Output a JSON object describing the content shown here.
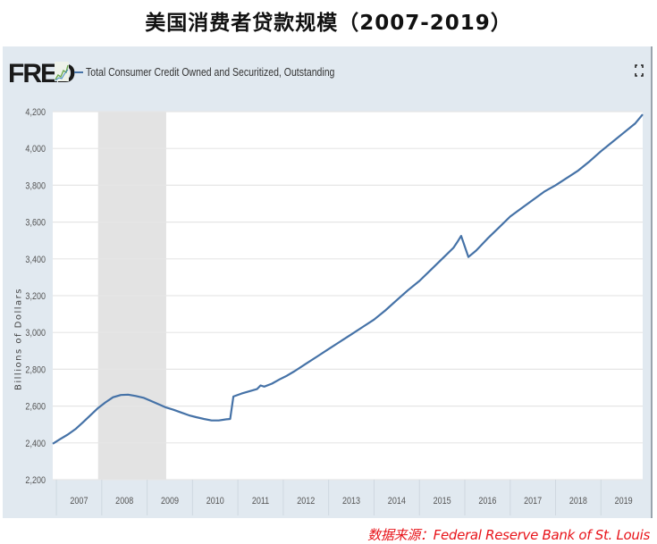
{
  "page": {
    "title": "美国消费者贷款规模（2007-2019）",
    "source": "数据来源：Federal Reserve Bank of St. Louis"
  },
  "fred": {
    "logo_text": "FRED",
    "legend_label": "Total Consumer Credit Owned and Securitized, Outstanding",
    "fullscreen_icon": "fullscreen-icon"
  },
  "colors": {
    "line": "#4572a7",
    "panel_bg": "#e1e9f0",
    "plot_bg": "#ffffff",
    "recession": "#e3e3e3",
    "gridline": "#e6e6e6",
    "source_text": "#e8141a"
  },
  "chart_data": {
    "type": "line",
    "title": "美国消费者贷款规模（2007-2019）",
    "subtitle": "Total Consumer Credit Owned and Securitized, Outstanding",
    "xlabel": "",
    "ylabel": "Billions of Dollars",
    "ylim": [
      2200,
      4200
    ],
    "yticks": [
      2200,
      2400,
      2600,
      2800,
      3000,
      3200,
      3400,
      3600,
      3800,
      4000,
      4200
    ],
    "ytick_labels": [
      "2,200",
      "2,400",
      "2,600",
      "2,800",
      "3,000",
      "3,200",
      "3,400",
      "3,600",
      "3,800",
      "4,000",
      "4,200"
    ],
    "xlim": [
      2006.92,
      2019.92
    ],
    "xticks": [
      2007.5,
      2008.5,
      2009.5,
      2010.5,
      2011.5,
      2012.5,
      2013.5,
      2014.5,
      2015.5,
      2016.5,
      2017.5,
      2018.5,
      2019.5
    ],
    "xtick_labels": [
      "2007",
      "2008",
      "2009",
      "2010",
      "2011",
      "2012",
      "2013",
      "2014",
      "2015",
      "2016",
      "2017",
      "2018",
      "2019"
    ],
    "grid": true,
    "legend_position": "top-left",
    "recession_shading": [
      {
        "start": 2007.92,
        "end": 2009.42
      }
    ],
    "series": [
      {
        "name": "Total Consumer Credit Owned and Securitized, Outstanding",
        "x": [
          2006.92,
          2007.08,
          2007.25,
          2007.42,
          2007.58,
          2007.75,
          2007.92,
          2008.08,
          2008.25,
          2008.42,
          2008.58,
          2008.75,
          2008.92,
          2009.08,
          2009.25,
          2009.42,
          2009.58,
          2009.75,
          2009.92,
          2010.08,
          2010.25,
          2010.42,
          2010.58,
          2010.75,
          2010.83,
          2010.9,
          2011.08,
          2011.25,
          2011.42,
          2011.5,
          2011.58,
          2011.75,
          2011.92,
          2012.08,
          2012.25,
          2012.5,
          2012.75,
          2013.0,
          2013.25,
          2013.5,
          2013.75,
          2014.0,
          2014.25,
          2014.5,
          2014.75,
          2015.0,
          2015.25,
          2015.5,
          2015.75,
          2015.83,
          2015.92,
          2016.08,
          2016.25,
          2016.5,
          2016.75,
          2017.0,
          2017.25,
          2017.5,
          2017.75,
          2018.0,
          2018.25,
          2018.5,
          2018.75,
          2019.0,
          2019.25,
          2019.5,
          2019.75,
          2019.92
        ],
        "values": [
          2395,
          2420,
          2445,
          2475,
          2510,
          2550,
          2590,
          2620,
          2648,
          2660,
          2662,
          2655,
          2645,
          2628,
          2610,
          2592,
          2580,
          2565,
          2550,
          2540,
          2530,
          2522,
          2522,
          2528,
          2530,
          2652,
          2668,
          2680,
          2692,
          2712,
          2706,
          2722,
          2745,
          2765,
          2790,
          2830,
          2870,
          2910,
          2950,
          2990,
          3030,
          3070,
          3120,
          3175,
          3230,
          3280,
          3340,
          3400,
          3460,
          3490,
          3525,
          3410,
          3445,
          3510,
          3570,
          3630,
          3675,
          3720,
          3765,
          3800,
          3840,
          3880,
          3930,
          3985,
          4035,
          4085,
          4135,
          4185
        ]
      }
    ]
  }
}
